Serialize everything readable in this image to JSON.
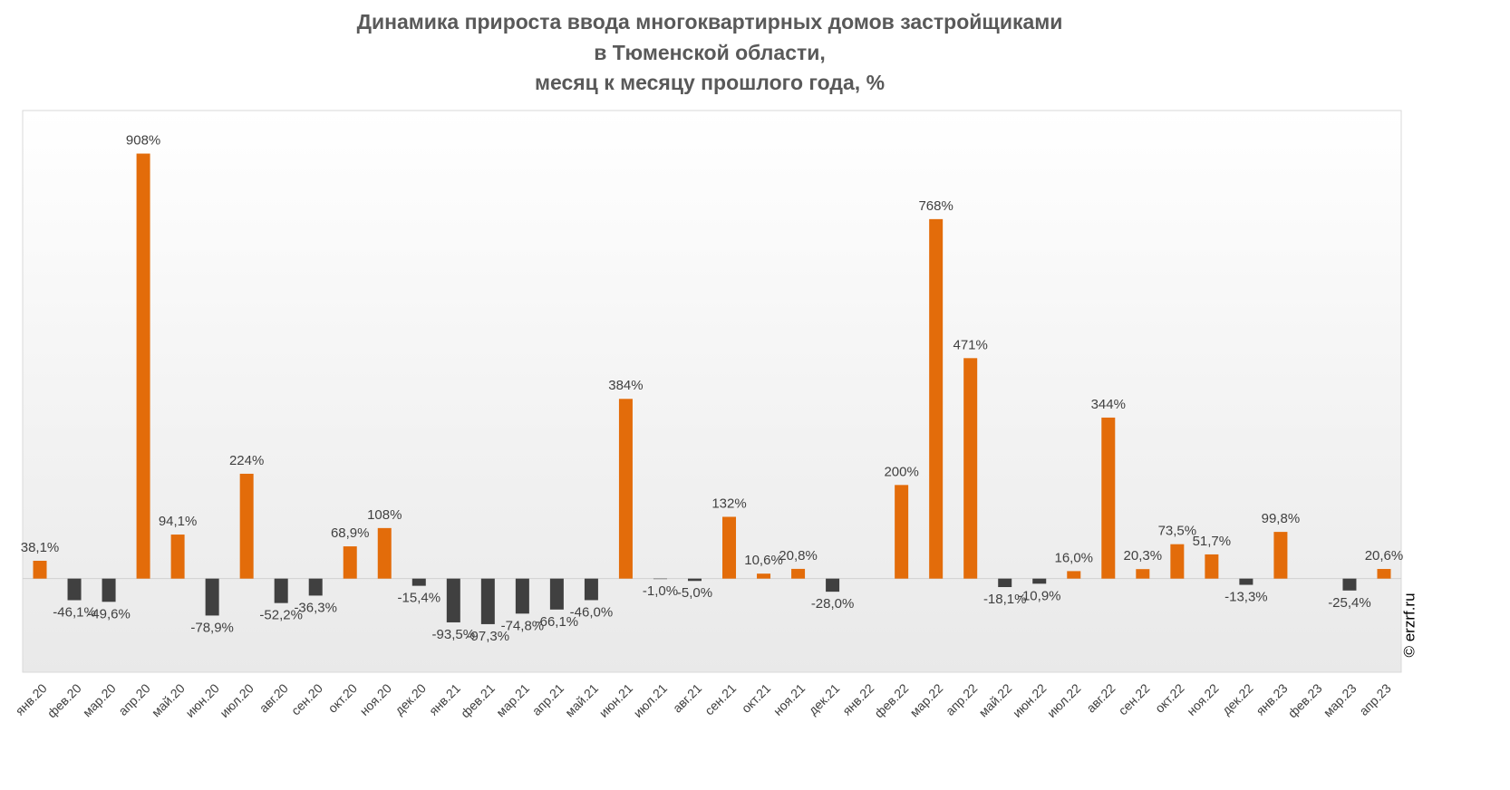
{
  "chart_data": {
    "type": "bar",
    "title": [
      "Динамика прироста ввода многоквартирных домов застройщиками",
      "в Тюменской области,",
      "месяц к месяцу прошлого года, %"
    ],
    "source": "© erzrf.ru",
    "categories": [
      "янв.20",
      "фев.20",
      "мар.20",
      "апр.20",
      "май.20",
      "июн.20",
      "июл.20",
      "авг.20",
      "сен.20",
      "окт.20",
      "ноя.20",
      "дек.20",
      "янв.21",
      "фев.21",
      "мар.21",
      "апр.21",
      "май.21",
      "июн.21",
      "июл.21",
      "авг.21",
      "сен.21",
      "окт.21",
      "ноя.21",
      "дек.21",
      "янв.22",
      "фев.22",
      "мар.22",
      "апр.22",
      "май.22",
      "июн.22",
      "июл.22",
      "авг.22",
      "сен.22",
      "окт.22",
      "ноя.22",
      "дек.22",
      "янв.23",
      "фев.23",
      "мар.23",
      "апр.23"
    ],
    "values": [
      38.1,
      -46.1,
      -49.6,
      908,
      94.1,
      -78.9,
      224,
      -52.2,
      -36.3,
      68.9,
      108,
      -15.4,
      -93.5,
      -97.3,
      -74.8,
      -66.1,
      -46.0,
      384,
      -1.0,
      -5.0,
      132,
      10.6,
      20.8,
      -28.0,
      null,
      200,
      768,
      471,
      -18.1,
      -10.9,
      16.0,
      344,
      20.3,
      73.5,
      51.7,
      -13.3,
      99.8,
      null,
      -25.4,
      20.6
    ],
    "value_labels": [
      "38,1%",
      "-46,1%",
      "-49,6%",
      "908%",
      "94,1%",
      "-78,9%",
      "224%",
      "-52,2%",
      "-36,3%",
      "68,9%",
      "108%",
      "-15,4%",
      "-93,5%",
      "-97,3%",
      "-74,8%",
      "-66,1%",
      "-46,0%",
      "384%",
      "-1,0%",
      "-5,0%",
      "132%",
      "10,6%",
      "20,8%",
      "-28,0%",
      null,
      "200%",
      "768%",
      "471%",
      "-18,1%",
      "-10,9%",
      "16,0%",
      "344%",
      "20,3%",
      "73,5%",
      "51,7%",
      "-13,3%",
      "99,8%",
      null,
      "-25,4%",
      "20,6%"
    ],
    "positive_color": "#e36c0a",
    "negative_color": "#404040",
    "ylim": [
      -200,
      1000
    ]
  }
}
